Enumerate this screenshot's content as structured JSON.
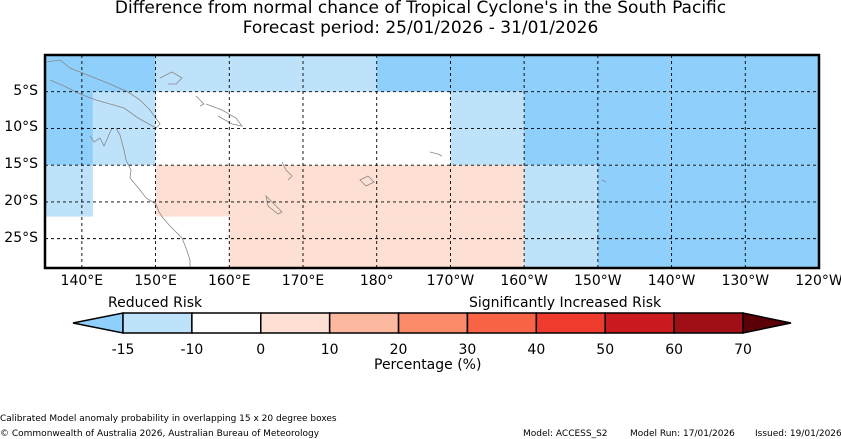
{
  "title_line1": "Difference from normal chance of Tropical Cyclone's in the South Pacific",
  "title_line2": "Forecast period: 25/01/2026 - 31/01/2026",
  "map": {
    "lon_range": [
      135,
      240
    ],
    "lat_range": [
      0,
      -29
    ],
    "y_ticks": [
      {
        "lat": -5,
        "label": "5°S"
      },
      {
        "lat": -10,
        "label": "10°S"
      },
      {
        "lat": -15,
        "label": "15°S"
      },
      {
        "lat": -20,
        "label": "20°S"
      },
      {
        "lat": -25,
        "label": "25°S"
      }
    ],
    "x_ticks": [
      {
        "lon": 140,
        "label": "140°E"
      },
      {
        "lon": 150,
        "label": "150°E"
      },
      {
        "lon": 160,
        "label": "160°E"
      },
      {
        "lon": 170,
        "label": "170°E"
      },
      {
        "lon": 180,
        "label": "180°"
      },
      {
        "lon": 190,
        "label": "170°W"
      },
      {
        "lon": 200,
        "label": "160°W"
      },
      {
        "lon": 210,
        "label": "150°W"
      },
      {
        "lon": 220,
        "label": "140°W"
      },
      {
        "lon": 230,
        "label": "130°W"
      },
      {
        "lon": 240,
        "label": "120°W"
      }
    ],
    "cells": [
      {
        "lon": [
          135,
          150
        ],
        "lat": [
          0,
          -5
        ],
        "color": "#8ecffc"
      },
      {
        "lon": [
          150,
          180
        ],
        "lat": [
          0,
          -5
        ],
        "color": "#bfe2fb"
      },
      {
        "lon": [
          180,
          240
        ],
        "lat": [
          0,
          -5
        ],
        "color": "#8ecffc"
      },
      {
        "lon": [
          135,
          141.5
        ],
        "lat": [
          -5,
          -15
        ],
        "color": "#8ecffc"
      },
      {
        "lon": [
          141.5,
          150
        ],
        "lat": [
          -5,
          -15
        ],
        "color": "#bfe2fb"
      },
      {
        "lon": [
          180,
          190
        ],
        "lat": [
          -5,
          -10
        ],
        "color": "#ffffff"
      },
      {
        "lon": [
          190,
          200
        ],
        "lat": [
          -5,
          -15
        ],
        "color": "#bfe2fb"
      },
      {
        "lon": [
          200,
          240
        ],
        "lat": [
          -5,
          -15
        ],
        "color": "#8ecffc"
      },
      {
        "lon": [
          135,
          141.5
        ],
        "lat": [
          -15,
          -22
        ],
        "color": "#bfe2fb"
      },
      {
        "lon": [
          150,
          200
        ],
        "lat": [
          -15,
          -22
        ],
        "color": "#fde0d3"
      },
      {
        "lon": [
          160,
          200
        ],
        "lat": [
          -22,
          -29
        ],
        "color": "#fde0d3"
      },
      {
        "lon": [
          200,
          210
        ],
        "lat": [
          -15,
          -29
        ],
        "color": "#bfe2fb"
      },
      {
        "lon": [
          210,
          240
        ],
        "lat": [
          -15,
          -29
        ],
        "color": "#8ecffc"
      }
    ]
  },
  "legend": {
    "left_label": "Reduced Risk",
    "right_label": "Significantly Increased Risk",
    "xlabel": "Percentage (%)",
    "ticks": [
      "-15",
      "-10",
      "0",
      "10",
      "20",
      "30",
      "40",
      "50",
      "60",
      "70"
    ],
    "colors": [
      "#bfe2fb",
      "#ffffff",
      "#fde0d3",
      "#fdb9a0",
      "#fc8b6a",
      "#f96447",
      "#ee3b2e",
      "#cb1a1e",
      "#9f0f15"
    ],
    "under_color": "#8ecffc",
    "over_color": "#5c0008"
  },
  "footer": {
    "note": "Calibrated Model anomaly probability in overlapping 15 x 20 degree boxes",
    "copyright": "© Commonwealth of Australia 2026, Australian Bureau of Meteorology",
    "model": "Model: ACCESS_S2",
    "model_run": "Model Run: 17/01/2026",
    "issued": "Issued: 19/01/2026"
  }
}
